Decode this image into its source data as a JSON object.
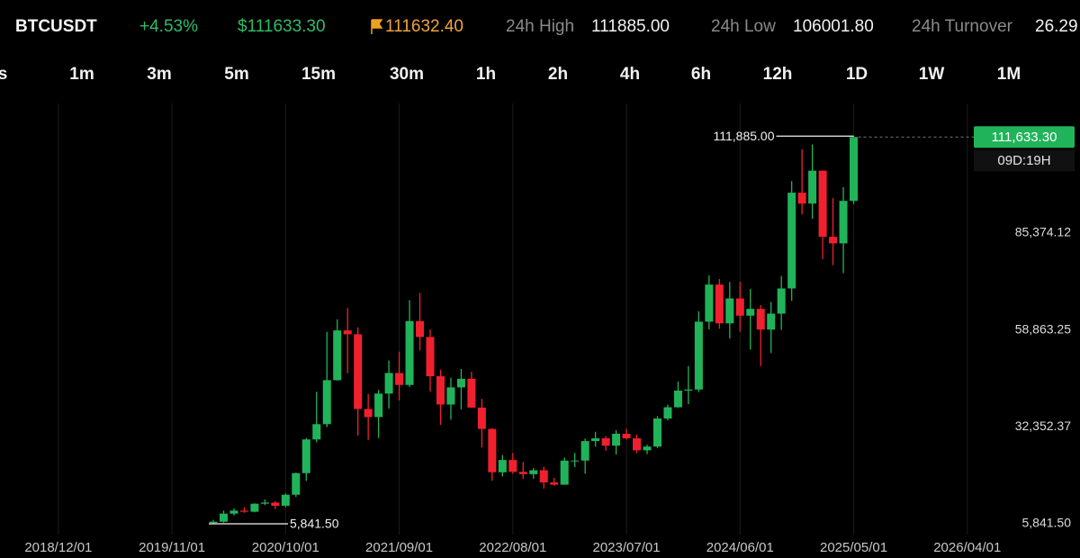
{
  "header": {
    "symbol": "BTCUSDT",
    "change": "+4.53%",
    "last_price": "$111633.30",
    "mark_price": "111632.40",
    "high_label": "24h High",
    "high_value": "111885.00",
    "low_label": "24h Low",
    "low_value": "106001.80",
    "turnover_label": "24h Turnover",
    "turnover_value": "26.29"
  },
  "timeframes": [
    "s",
    "1m",
    "3m",
    "5m",
    "15m",
    "30m",
    "1h",
    "2h",
    "4h",
    "6h",
    "12h",
    "1D",
    "1W",
    "1M"
  ],
  "chart_data": {
    "type": "candlestick",
    "x": [
      "2020/03/01",
      "2020/04/01",
      "2020/05/01",
      "2020/06/01",
      "2020/07/01",
      "2020/08/01",
      "2020/09/01",
      "2020/10/01",
      "2020/11/01",
      "2020/12/01",
      "2021/01/01",
      "2021/02/01",
      "2021/03/01",
      "2021/04/01",
      "2021/05/01",
      "2021/06/01",
      "2021/07/01",
      "2021/08/01",
      "2021/09/01",
      "2021/10/01",
      "2021/11/01",
      "2021/12/01",
      "2022/01/01",
      "2022/02/01",
      "2022/03/01",
      "2022/04/01",
      "2022/05/01",
      "2022/06/01",
      "2022/07/01",
      "2022/08/01",
      "2022/09/01",
      "2022/10/01",
      "2022/11/01",
      "2022/12/01",
      "2023/01/01",
      "2023/02/01",
      "2023/03/01",
      "2023/04/01",
      "2023/05/01",
      "2023/06/01",
      "2023/07/01",
      "2023/08/01",
      "2023/09/01",
      "2023/10/01",
      "2023/11/01",
      "2023/12/01",
      "2024/01/01",
      "2024/02/01",
      "2024/03/01",
      "2024/04/01",
      "2024/05/01",
      "2024/06/01",
      "2024/07/01",
      "2024/08/01",
      "2024/09/01",
      "2024/10/01",
      "2024/11/01",
      "2024/12/01",
      "2025/01/01",
      "2025/02/01",
      "2025/03/01",
      "2025/04/01",
      "2025/05/01"
    ],
    "open": [
      6050,
      6410,
      8620,
      9450,
      9140,
      11340,
      11650,
      10780,
      13790,
      19700,
      28920,
      33090,
      45130,
      58740,
      57690,
      37250,
      35040,
      41460,
      47100,
      43820,
      61300,
      56950,
      46210,
      38470,
      43160,
      45510,
      37630,
      31800,
      19940,
      23290,
      20050,
      19420,
      20490,
      17160,
      16540,
      23130,
      23140,
      28470,
      29230,
      27210,
      30470,
      29230,
      25940,
      26960,
      34640,
      37720,
      42280,
      42580,
      61130,
      71280,
      60670,
      67490,
      62770,
      64630,
      58970,
      63330,
      70220,
      96410,
      93430,
      102430,
      84350,
      82550,
      94170
    ],
    "high": [
      6900,
      9460,
      10070,
      10380,
      11440,
      12480,
      12080,
      14100,
      19860,
      29300,
      41950,
      58350,
      61790,
      64850,
      59590,
      41330,
      42450,
      50500,
      52920,
      67000,
      69000,
      59050,
      47990,
      45820,
      48190,
      47440,
      40020,
      31980,
      24670,
      25210,
      22800,
      21080,
      21480,
      18390,
      23960,
      25250,
      29180,
      31000,
      29820,
      31430,
      31800,
      30230,
      27480,
      35280,
      38450,
      44730,
      48970,
      64000,
      73780,
      72800,
      71980,
      72000,
      70080,
      65660,
      66500,
      73620,
      99590,
      108350,
      109590,
      102500,
      95000,
      97940,
      111885
    ],
    "low": [
      5841.5,
      6150,
      8100,
      8830,
      8980,
      10960,
      9880,
      10370,
      13190,
      17570,
      28130,
      32290,
      45000,
      47040,
      30000,
      28800,
      29280,
      37330,
      39600,
      43280,
      53260,
      42000,
      32920,
      34320,
      37160,
      37580,
      26700,
      17620,
      18780,
      19520,
      18130,
      18190,
      15480,
      16260,
      16500,
      21350,
      19550,
      26940,
      25810,
      24800,
      28860,
      25170,
      24900,
      26550,
      34100,
      37620,
      38550,
      41880,
      59000,
      59190,
      56550,
      58400,
      53490,
      49000,
      52550,
      58860,
      66830,
      90500,
      89260,
      78260,
      76600,
      74400,
      93350
    ],
    "close": [
      6410,
      8620,
      9450,
      9140,
      11340,
      11650,
      10780,
      13790,
      19700,
      28920,
      33090,
      45130,
      58740,
      57690,
      37250,
      35040,
      41460,
      47100,
      43820,
      61300,
      56950,
      46210,
      38470,
      43160,
      45510,
      37630,
      31800,
      19940,
      23290,
      20050,
      19420,
      20490,
      17160,
      16540,
      23130,
      23140,
      28470,
      29230,
      27210,
      30470,
      29230,
      25940,
      26960,
      34640,
      37720,
      42280,
      42580,
      61130,
      71280,
      60670,
      67490,
      62770,
      64630,
      58970,
      63330,
      70220,
      96410,
      93430,
      102430,
      84350,
      82550,
      94170,
      111633.3
    ],
    "up_color": "#21b35a",
    "down_color": "#f0202e",
    "xlim": [
      "2018/06/01",
      "2027/03/01"
    ],
    "xticks": [
      "2018/12/01",
      "2019/11/01",
      "2020/10/01",
      "2021/09/01",
      "2022/08/01",
      "2023/07/01",
      "2024/06/01",
      "2025/05/01",
      "2026/04/01"
    ],
    "ylim": [
      1410,
      120810
    ],
    "yticks": [
      {
        "value": 5841.5,
        "label": "5,841.50"
      },
      {
        "value": 32352.37,
        "label": "32,352.37"
      },
      {
        "value": 58863.25,
        "label": "58,863.25"
      },
      {
        "value": 85374.12,
        "label": "85,374.12"
      }
    ],
    "grid": "x",
    "max_marker": {
      "value": 111885,
      "label": "111,885.00"
    },
    "min_marker": {
      "value": 5841.5,
      "label": "5,841.50"
    },
    "current_price": {
      "value": 111633.3,
      "label": "111,633.30"
    },
    "countdown": "09D:19H"
  }
}
